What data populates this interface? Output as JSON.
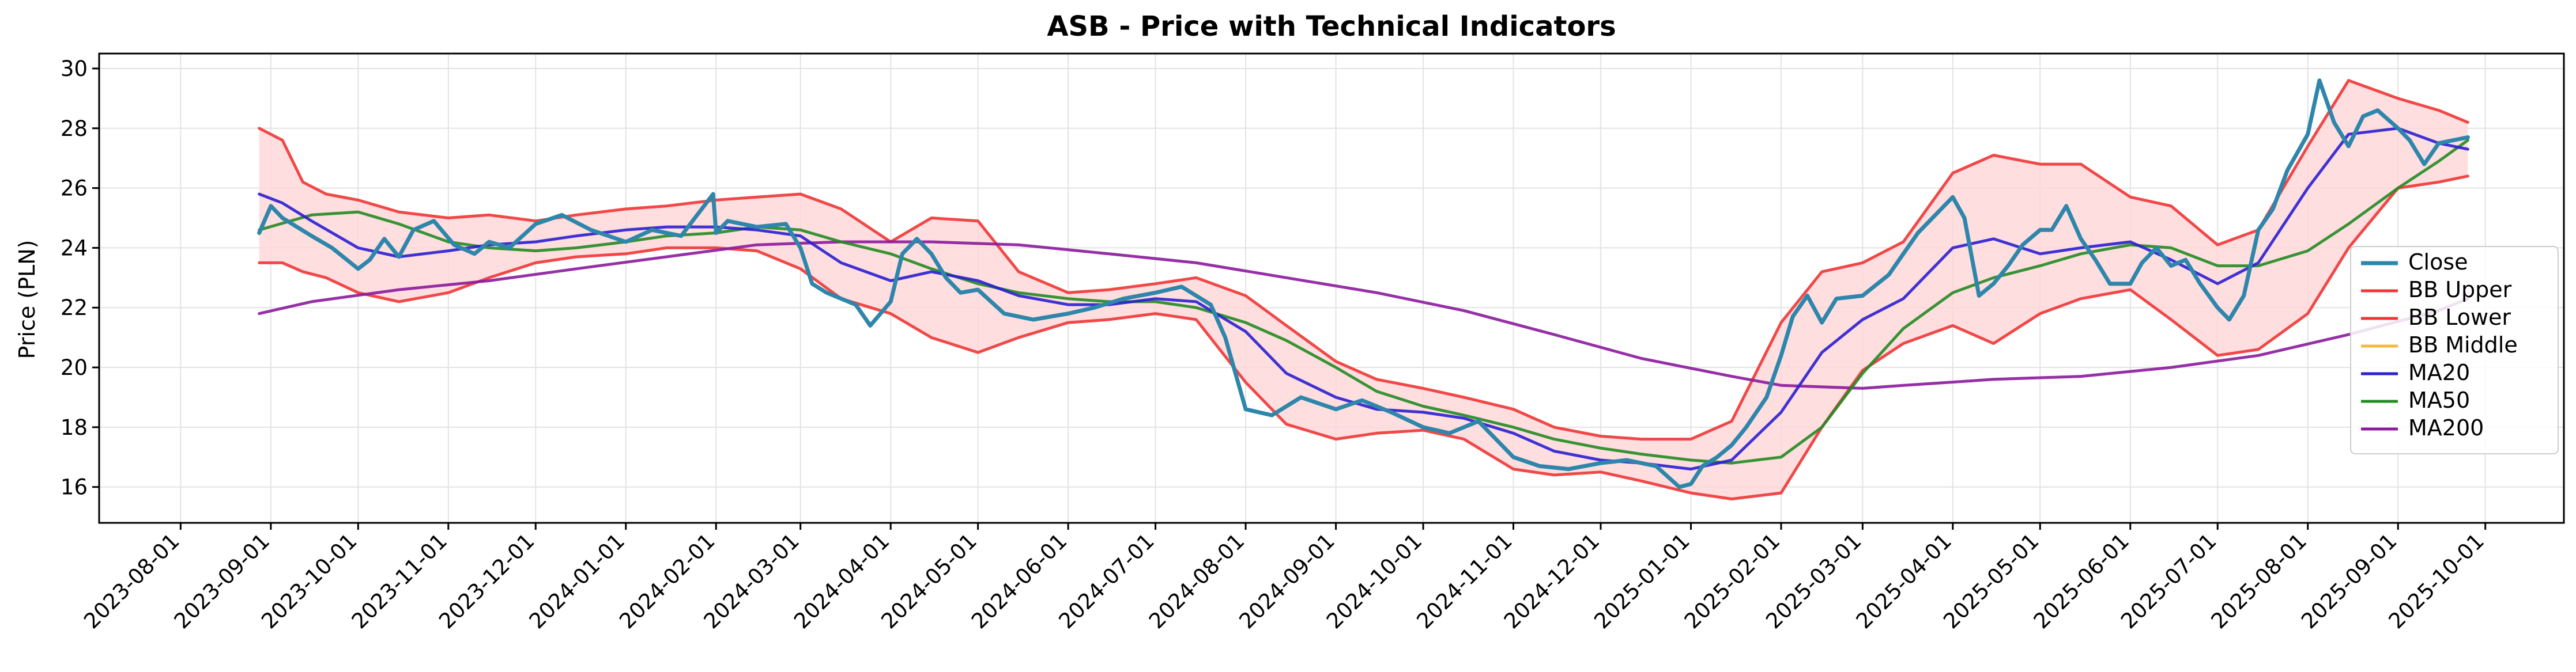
{
  "chart_data": {
    "type": "line",
    "title": "ASB - Price with Technical Indicators",
    "xlabel": "",
    "ylabel": "Price (PLN)",
    "ylim": [
      14.8,
      30.5
    ],
    "xlim": [
      "2023-07-04",
      "2025-10-28"
    ],
    "grid": true,
    "legend_position": "center-right",
    "x_ticks": [
      "2023-08-01",
      "2023-09-01",
      "2023-10-01",
      "2023-11-01",
      "2023-12-01",
      "2024-01-01",
      "2024-02-01",
      "2024-03-01",
      "2024-04-01",
      "2024-05-01",
      "2024-06-01",
      "2024-07-01",
      "2024-08-01",
      "2024-09-01",
      "2024-10-01",
      "2024-11-01",
      "2024-12-01",
      "2025-01-01",
      "2025-02-01",
      "2025-03-01",
      "2025-04-01",
      "2025-05-01",
      "2025-06-01",
      "2025-07-01",
      "2025-08-01",
      "2025-09-01",
      "2025-10-01"
    ],
    "y_ticks": [
      16,
      18,
      20,
      22,
      24,
      26,
      28,
      30
    ],
    "band_fill_color": "#ffd6d8",
    "series": [
      {
        "name": "Close",
        "color": "#2e86ab",
        "width": 7,
        "x": [
          "2023-08-28",
          "2023-09-01",
          "2023-09-05",
          "2023-09-10",
          "2023-09-15",
          "2023-09-22",
          "2023-10-01",
          "2023-10-05",
          "2023-10-10",
          "2023-10-15",
          "2023-10-20",
          "2023-10-27",
          "2023-11-03",
          "2023-11-10",
          "2023-11-15",
          "2023-11-22",
          "2023-12-01",
          "2023-12-10",
          "2023-12-20",
          "2024-01-01",
          "2024-01-10",
          "2024-01-20",
          "2024-01-31",
          "2024-02-01",
          "2024-02-05",
          "2024-02-15",
          "2024-02-25",
          "2024-03-01",
          "2024-03-05",
          "2024-03-10",
          "2024-03-20",
          "2024-03-25",
          "2024-04-01",
          "2024-04-05",
          "2024-04-10",
          "2024-04-15",
          "2024-04-20",
          "2024-04-25",
          "2024-05-01",
          "2024-05-10",
          "2024-05-20",
          "2024-06-01",
          "2024-06-10",
          "2024-06-20",
          "2024-07-01",
          "2024-07-10",
          "2024-07-20",
          "2024-07-25",
          "2024-08-01",
          "2024-08-10",
          "2024-08-20",
          "2024-09-01",
          "2024-09-10",
          "2024-09-20",
          "2024-10-01",
          "2024-10-10",
          "2024-10-20",
          "2024-11-01",
          "2024-11-10",
          "2024-11-20",
          "2024-12-01",
          "2024-12-10",
          "2024-12-20",
          "2024-12-28",
          "2025-01-01",
          "2025-01-05",
          "2025-01-10",
          "2025-01-15",
          "2025-01-20",
          "2025-01-27",
          "2025-02-01",
          "2025-02-05",
          "2025-02-10",
          "2025-02-15",
          "2025-02-20",
          "2025-03-01",
          "2025-03-10",
          "2025-03-20",
          "2025-04-01",
          "2025-04-05",
          "2025-04-10",
          "2025-04-15",
          "2025-04-20",
          "2025-04-25",
          "2025-05-01",
          "2025-05-05",
          "2025-05-10",
          "2025-05-15",
          "2025-05-20",
          "2025-05-25",
          "2025-06-01",
          "2025-06-05",
          "2025-06-10",
          "2025-06-15",
          "2025-06-20",
          "2025-06-25",
          "2025-07-01",
          "2025-07-05",
          "2025-07-10",
          "2025-07-15",
          "2025-07-20",
          "2025-07-25",
          "2025-08-01",
          "2025-08-05",
          "2025-08-10",
          "2025-08-15",
          "2025-08-20",
          "2025-08-25",
          "2025-09-01",
          "2025-09-05",
          "2025-09-10",
          "2025-09-15",
          "2025-09-20",
          "2025-09-25"
        ],
        "values": [
          24.5,
          25.4,
          25.0,
          24.7,
          24.4,
          24.0,
          23.3,
          23.6,
          24.3,
          23.7,
          24.6,
          24.9,
          24.1,
          23.8,
          24.2,
          24.0,
          24.8,
          25.1,
          24.6,
          24.2,
          24.6,
          24.4,
          25.8,
          24.5,
          24.9,
          24.7,
          24.8,
          24.0,
          22.8,
          22.5,
          22.1,
          21.4,
          22.2,
          23.8,
          24.3,
          23.8,
          23.0,
          22.5,
          22.6,
          21.8,
          21.6,
          21.8,
          22.0,
          22.3,
          22.5,
          22.7,
          22.1,
          21.0,
          18.6,
          18.4,
          19.0,
          18.6,
          18.9,
          18.5,
          18.0,
          17.8,
          18.2,
          17.0,
          16.7,
          16.6,
          16.8,
          16.9,
          16.7,
          16.0,
          16.1,
          16.7,
          17.0,
          17.4,
          18.0,
          19.0,
          20.4,
          21.7,
          22.4,
          21.5,
          22.3,
          22.4,
          23.1,
          24.5,
          25.7,
          25.0,
          22.4,
          22.8,
          23.4,
          24.1,
          24.6,
          24.6,
          25.4,
          24.3,
          23.6,
          22.8,
          22.8,
          23.5,
          24.0,
          23.4,
          23.6,
          22.8,
          22.0,
          21.6,
          22.4,
          24.6,
          25.3,
          26.6,
          27.8,
          29.6,
          28.2,
          27.4,
          28.4,
          28.6,
          28.0,
          27.6,
          26.8,
          27.5,
          27.6,
          27.7
        ]
      },
      {
        "name": "BB Upper",
        "color": "#ef3535",
        "width": 5,
        "x": [
          "2023-08-28",
          "2023-09-05",
          "2023-09-12",
          "2023-09-20",
          "2023-10-01",
          "2023-10-15",
          "2023-11-01",
          "2023-11-15",
          "2023-12-01",
          "2023-12-15",
          "2024-01-01",
          "2024-01-15",
          "2024-02-01",
          "2024-02-15",
          "2024-03-01",
          "2024-03-15",
          "2024-04-01",
          "2024-04-15",
          "2024-05-01",
          "2024-05-15",
          "2024-06-01",
          "2024-06-15",
          "2024-07-01",
          "2024-07-15",
          "2024-08-01",
          "2024-08-15",
          "2024-09-01",
          "2024-09-15",
          "2024-10-01",
          "2024-10-15",
          "2024-11-01",
          "2024-11-15",
          "2024-12-01",
          "2024-12-15",
          "2025-01-01",
          "2025-01-15",
          "2025-02-01",
          "2025-02-15",
          "2025-03-01",
          "2025-03-15",
          "2025-04-01",
          "2025-04-15",
          "2025-05-01",
          "2025-05-15",
          "2025-06-01",
          "2025-06-15",
          "2025-07-01",
          "2025-07-15",
          "2025-08-01",
          "2025-08-15",
          "2025-09-01",
          "2025-09-15",
          "2025-09-25"
        ],
        "values": [
          28.0,
          27.6,
          26.2,
          25.8,
          25.6,
          25.2,
          25.0,
          25.1,
          24.9,
          25.1,
          25.3,
          25.4,
          25.6,
          25.7,
          25.8,
          25.3,
          24.2,
          25.0,
          24.9,
          23.2,
          22.5,
          22.6,
          22.8,
          23.0,
          22.4,
          21.4,
          20.2,
          19.6,
          19.3,
          19.0,
          18.6,
          18.0,
          17.7,
          17.6,
          17.6,
          18.2,
          21.5,
          23.2,
          23.5,
          24.2,
          26.5,
          27.1,
          26.8,
          26.8,
          25.7,
          25.4,
          24.1,
          24.6,
          27.4,
          29.6,
          29.0,
          28.6,
          28.2
        ]
      },
      {
        "name": "BB Lower",
        "color": "#ef3535",
        "width": 5,
        "x": [
          "2023-08-28",
          "2023-09-05",
          "2023-09-12",
          "2023-09-20",
          "2023-10-01",
          "2023-10-15",
          "2023-11-01",
          "2023-11-15",
          "2023-12-01",
          "2023-12-15",
          "2024-01-01",
          "2024-01-15",
          "2024-02-01",
          "2024-02-15",
          "2024-03-01",
          "2024-03-15",
          "2024-04-01",
          "2024-04-15",
          "2024-05-01",
          "2024-05-15",
          "2024-06-01",
          "2024-06-15",
          "2024-07-01",
          "2024-07-15",
          "2024-08-01",
          "2024-08-15",
          "2024-09-01",
          "2024-09-15",
          "2024-10-01",
          "2024-10-15",
          "2024-11-01",
          "2024-11-15",
          "2024-12-01",
          "2024-12-15",
          "2025-01-01",
          "2025-01-15",
          "2025-02-01",
          "2025-02-15",
          "2025-03-01",
          "2025-03-15",
          "2025-04-01",
          "2025-04-15",
          "2025-05-01",
          "2025-05-15",
          "2025-06-01",
          "2025-06-15",
          "2025-07-01",
          "2025-07-15",
          "2025-08-01",
          "2025-08-15",
          "2025-09-01",
          "2025-09-15",
          "2025-09-25"
        ],
        "values": [
          23.5,
          23.5,
          23.2,
          23.0,
          22.5,
          22.2,
          22.5,
          23.0,
          23.5,
          23.7,
          23.8,
          24.0,
          24.0,
          23.9,
          23.3,
          22.3,
          21.8,
          21.0,
          20.5,
          21.0,
          21.5,
          21.6,
          21.8,
          21.6,
          19.5,
          18.1,
          17.6,
          17.8,
          17.9,
          17.6,
          16.6,
          16.4,
          16.5,
          16.2,
          15.8,
          15.6,
          15.8,
          18.0,
          19.9,
          20.8,
          21.4,
          20.8,
          21.8,
          22.3,
          22.6,
          21.6,
          20.4,
          20.6,
          21.8,
          24.0,
          26.0,
          26.2,
          26.4
        ]
      },
      {
        "name": "BB Middle",
        "color": "#f5b942",
        "width": 5,
        "x": [],
        "values": []
      },
      {
        "name": "MA20",
        "color": "#2a1fd1",
        "width": 5,
        "x": [
          "2023-08-28",
          "2023-09-05",
          "2023-09-15",
          "2023-10-01",
          "2023-10-15",
          "2023-11-01",
          "2023-11-15",
          "2023-12-01",
          "2023-12-15",
          "2024-01-01",
          "2024-01-15",
          "2024-02-01",
          "2024-02-15",
          "2024-03-01",
          "2024-03-15",
          "2024-04-01",
          "2024-04-15",
          "2024-05-01",
          "2024-05-15",
          "2024-06-01",
          "2024-06-15",
          "2024-07-01",
          "2024-07-15",
          "2024-08-01",
          "2024-08-15",
          "2024-09-01",
          "2024-09-15",
          "2024-10-01",
          "2024-10-15",
          "2024-11-01",
          "2024-11-15",
          "2024-12-01",
          "2024-12-15",
          "2025-01-01",
          "2025-01-15",
          "2025-02-01",
          "2025-02-15",
          "2025-03-01",
          "2025-03-15",
          "2025-04-01",
          "2025-04-15",
          "2025-05-01",
          "2025-05-15",
          "2025-06-01",
          "2025-06-15",
          "2025-07-01",
          "2025-07-15",
          "2025-08-01",
          "2025-08-15",
          "2025-09-01",
          "2025-09-15",
          "2025-09-25"
        ],
        "values": [
          25.8,
          25.5,
          24.9,
          24.0,
          23.7,
          23.9,
          24.1,
          24.2,
          24.4,
          24.6,
          24.7,
          24.7,
          24.6,
          24.4,
          23.5,
          22.9,
          23.2,
          22.9,
          22.4,
          22.1,
          22.1,
          22.3,
          22.2,
          21.2,
          19.8,
          19.0,
          18.6,
          18.5,
          18.3,
          17.8,
          17.2,
          16.9,
          16.8,
          16.6,
          16.9,
          18.5,
          20.5,
          21.6,
          22.3,
          24.0,
          24.3,
          23.8,
          24.0,
          24.2,
          23.6,
          22.8,
          23.5,
          26.0,
          27.8,
          28.0,
          27.5,
          27.3
        ]
      },
      {
        "name": "MA50",
        "color": "#228b22",
        "width": 5,
        "x": [
          "2023-08-28",
          "2023-09-15",
          "2023-10-01",
          "2023-10-15",
          "2023-11-01",
          "2023-11-15",
          "2023-12-01",
          "2023-12-15",
          "2024-01-01",
          "2024-01-15",
          "2024-02-01",
          "2024-02-15",
          "2024-03-01",
          "2024-03-15",
          "2024-04-01",
          "2024-04-15",
          "2024-05-01",
          "2024-05-15",
          "2024-06-01",
          "2024-06-15",
          "2024-07-01",
          "2024-07-15",
          "2024-08-01",
          "2024-08-15",
          "2024-09-01",
          "2024-09-15",
          "2024-10-01",
          "2024-10-15",
          "2024-11-01",
          "2024-11-15",
          "2024-12-01",
          "2024-12-15",
          "2025-01-01",
          "2025-01-15",
          "2025-02-01",
          "2025-02-15",
          "2025-03-01",
          "2025-03-15",
          "2025-04-01",
          "2025-04-15",
          "2025-05-01",
          "2025-05-15",
          "2025-06-01",
          "2025-06-15",
          "2025-07-01",
          "2025-07-15",
          "2025-08-01",
          "2025-08-15",
          "2025-09-01",
          "2025-09-15",
          "2025-09-25"
        ],
        "values": [
          24.6,
          25.1,
          25.2,
          24.8,
          24.2,
          24.0,
          23.9,
          24.0,
          24.2,
          24.4,
          24.5,
          24.7,
          24.6,
          24.2,
          23.8,
          23.3,
          22.8,
          22.5,
          22.3,
          22.2,
          22.2,
          22.0,
          21.5,
          20.9,
          20.0,
          19.2,
          18.7,
          18.4,
          18.0,
          17.6,
          17.3,
          17.1,
          16.9,
          16.8,
          17.0,
          18.0,
          19.8,
          21.3,
          22.5,
          23.0,
          23.4,
          23.8,
          24.1,
          24.0,
          23.4,
          23.4,
          23.9,
          24.8,
          26.0,
          26.9,
          27.6
        ]
      },
      {
        "name": "MA200",
        "color": "#8b1a9c",
        "width": 5,
        "x": [
          "2023-08-28",
          "2023-09-15",
          "2023-10-15",
          "2023-11-15",
          "2023-12-15",
          "2024-01-15",
          "2024-02-15",
          "2024-03-15",
          "2024-04-15",
          "2024-05-15",
          "2024-06-15",
          "2024-07-15",
          "2024-08-15",
          "2024-09-15",
          "2024-10-15",
          "2024-11-15",
          "2024-12-15",
          "2025-01-15",
          "2025-02-01",
          "2025-03-01",
          "2025-03-15",
          "2025-04-15",
          "2025-05-15",
          "2025-06-15",
          "2025-07-15",
          "2025-08-15",
          "2025-09-15",
          "2025-09-25"
        ],
        "values": [
          21.8,
          22.2,
          22.6,
          22.9,
          23.3,
          23.7,
          24.1,
          24.2,
          24.2,
          24.1,
          23.8,
          23.5,
          23.0,
          22.5,
          21.9,
          21.1,
          20.3,
          19.7,
          19.4,
          19.3,
          19.4,
          19.6,
          19.7,
          20.0,
          20.4,
          21.1,
          21.9,
          22.3
        ]
      }
    ]
  }
}
